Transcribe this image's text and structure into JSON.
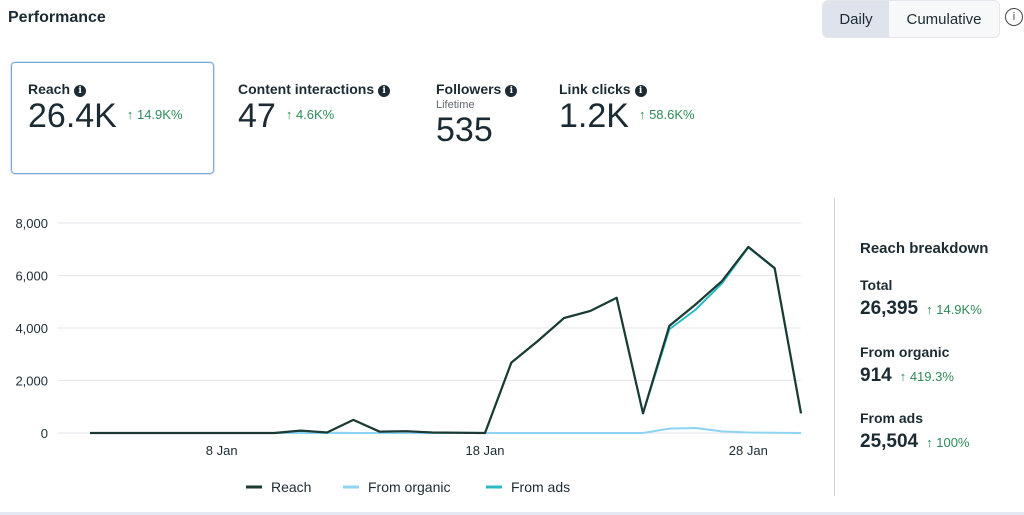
{
  "header": {
    "title": "Performance",
    "toggle": {
      "daily": "Daily",
      "cumulative": "Cumulative",
      "selected": "Daily"
    },
    "info_icon": "info-circle-icon"
  },
  "metrics": [
    {
      "label": "Reach",
      "value": "26.4K",
      "change": "↑ 14.9K%",
      "selected": true
    },
    {
      "label": "Content interactions",
      "value": "47",
      "change": "↑ 4.6K%"
    },
    {
      "label": "Followers",
      "sublabel": "Lifetime",
      "value": "535"
    },
    {
      "label": "Link clicks",
      "value": "1.2K",
      "change": "↑ 58.6K%"
    }
  ],
  "breakdown": {
    "title": "Reach breakdown",
    "items": [
      {
        "label": "Total",
        "value": "26,395",
        "change": "↑ 14.9K%"
      },
      {
        "label": "From organic",
        "value": "914",
        "change": "↑ 419.3%"
      },
      {
        "label": "From ads",
        "value": "25,504",
        "change": "↑ 100%"
      }
    ]
  },
  "chart_data": {
    "type": "line",
    "x": [
      "3 Jan",
      "4 Jan",
      "5 Jan",
      "6 Jan",
      "7 Jan",
      "8 Jan",
      "9 Jan",
      "10 Jan",
      "11 Jan",
      "12 Jan",
      "13 Jan",
      "14 Jan",
      "15 Jan",
      "16 Jan",
      "17 Jan",
      "18 Jan",
      "19 Jan",
      "20 Jan",
      "21 Jan",
      "22 Jan",
      "23 Jan",
      "24 Jan",
      "25 Jan",
      "26 Jan",
      "27 Jan",
      "28 Jan",
      "29 Jan",
      "30 Jan"
    ],
    "xticks": [
      "8 Jan",
      "18 Jan",
      "28 Jan"
    ],
    "yticks": [
      "0",
      "2,000",
      "4,000",
      "6,000",
      "8,000"
    ],
    "ylim": [
      0,
      8000
    ],
    "grid": true,
    "legend": "bottom",
    "series": [
      {
        "name": "Reach",
        "color": "#1b3a33",
        "values": [
          0,
          0,
          0,
          0,
          0,
          0,
          0,
          0,
          90,
          20,
          500,
          50,
          70,
          20,
          10,
          0,
          2680,
          3500,
          4380,
          4650,
          5150,
          750,
          4080,
          4900,
          5790,
          7090,
          6280,
          750
        ]
      },
      {
        "name": "From organic",
        "color": "#8fd3f2",
        "values": [
          0,
          0,
          0,
          0,
          0,
          0,
          0,
          0,
          0,
          0,
          0,
          0,
          0,
          0,
          0,
          0,
          0,
          0,
          0,
          0,
          0,
          0,
          165,
          190,
          60,
          20,
          10,
          0
        ]
      },
      {
        "name": "From ads",
        "color": "#2bbac4",
        "values": [
          0,
          0,
          0,
          0,
          0,
          0,
          0,
          0,
          80,
          10,
          0,
          0,
          0,
          0,
          0,
          0,
          2680,
          3500,
          4380,
          4650,
          5150,
          750,
          3950,
          4700,
          5700,
          7070,
          6270,
          750
        ]
      }
    ]
  }
}
